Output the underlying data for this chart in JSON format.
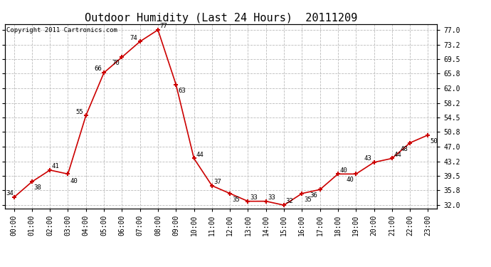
{
  "title": "Outdoor Humidity (Last 24 Hours)  20111209",
  "copyright": "Copyright 2011 Cartronics.com",
  "x_labels": [
    "00:00",
    "01:00",
    "02:00",
    "03:00",
    "04:00",
    "05:00",
    "06:00",
    "07:00",
    "08:00",
    "09:00",
    "10:00",
    "11:00",
    "12:00",
    "13:00",
    "14:00",
    "15:00",
    "16:00",
    "17:00",
    "18:00",
    "19:00",
    "20:00",
    "21:00",
    "22:00",
    "23:00"
  ],
  "y_values": [
    34,
    38,
    41,
    40,
    55,
    66,
    70,
    74,
    77,
    63,
    44,
    37,
    35,
    33,
    33,
    32,
    35,
    36,
    40,
    40,
    43,
    44,
    48,
    50
  ],
  "y_ticks": [
    32.0,
    35.8,
    39.5,
    43.2,
    47.0,
    50.8,
    54.5,
    58.2,
    62.0,
    65.8,
    69.5,
    73.2,
    77.0
  ],
  "ylim": [
    31.2,
    78.5
  ],
  "line_color": "#cc0000",
  "bg_color": "#ffffff",
  "grid_color": "#bbbbbb",
  "title_fontsize": 11,
  "copyright_fontsize": 6.5,
  "annotation_fontsize": 6.5,
  "tick_fontsize": 7
}
